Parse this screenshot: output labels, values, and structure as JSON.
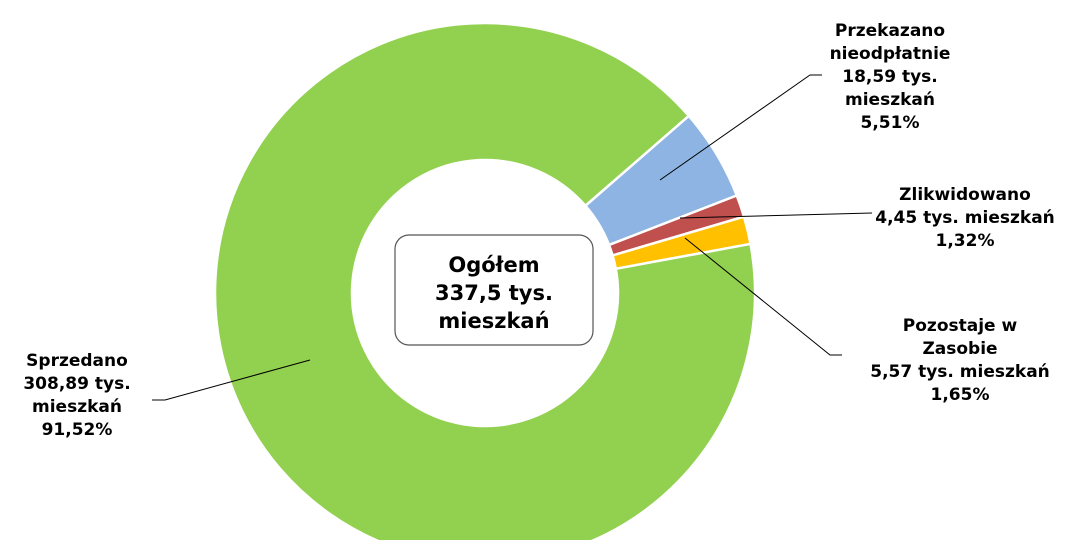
{
  "chart_data": {
    "type": "donut",
    "categories": [
      "Przekazano nieodpłatnie",
      "Zlikwidowano",
      "Pozostaje w Zasobie",
      "Sprzedano"
    ],
    "values": [
      5.51,
      1.32,
      1.65,
      91.52
    ],
    "value_labels": [
      "5,51%",
      "1,32%",
      "1,65%",
      "91,52%"
    ],
    "counts": [
      18.59,
      4.45,
      5.57,
      308.89
    ],
    "count_labels": [
      "18,59 tys. mieszkań",
      "4,45 tys. mieszkań",
      "5,57 tys. mieszkań",
      "308,89 tys. mieszkań"
    ],
    "colors": [
      "#8db4e2",
      "#c0504d",
      "#ffc000",
      "#92d050"
    ],
    "center_text": [
      "Ogółem",
      "337,5 tys.",
      "mieszkań"
    ]
  }
}
